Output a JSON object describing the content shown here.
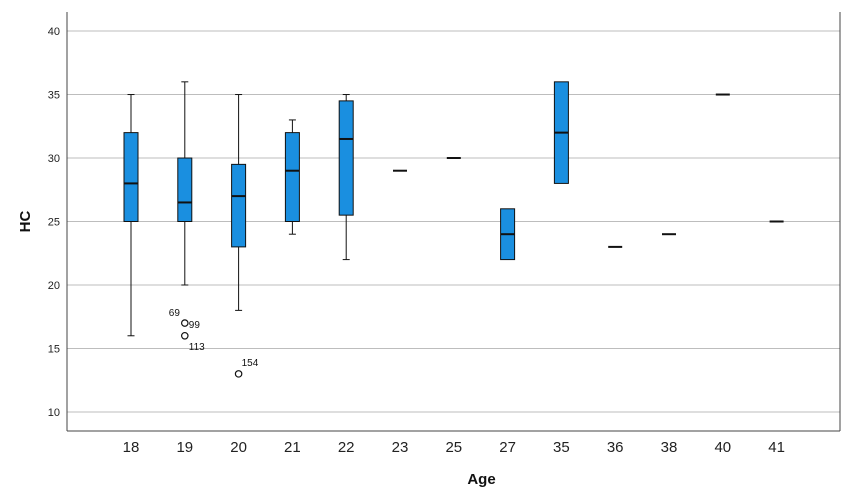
{
  "chart_data": {
    "type": "boxplot",
    "xlabel": "Age",
    "ylabel": "HC",
    "ylim": [
      8.5,
      41.5
    ],
    "yticks": [
      10,
      15,
      20,
      25,
      30,
      35,
      40
    ],
    "grid": "horizontal",
    "box_color": "#1a8fe0",
    "categories": [
      "18",
      "19",
      "20",
      "21",
      "22",
      "23",
      "25",
      "27",
      "35",
      "36",
      "38",
      "40",
      "41"
    ],
    "boxes": [
      {
        "category": "18",
        "whisker_low": 16,
        "q1": 25,
        "median": 28,
        "q3": 32,
        "whisker_high": 35
      },
      {
        "category": "19",
        "whisker_low": 20,
        "q1": 25,
        "median": 26.5,
        "q3": 30,
        "whisker_high": 36
      },
      {
        "category": "20",
        "whisker_low": 18,
        "q1": 23,
        "median": 27,
        "q3": 29.5,
        "whisker_high": 35
      },
      {
        "category": "21",
        "whisker_low": 24,
        "q1": 25,
        "median": 29,
        "q3": 32,
        "whisker_high": 33
      },
      {
        "category": "22",
        "whisker_low": 22,
        "q1": 25.5,
        "median": 31.5,
        "q3": 34.5,
        "whisker_high": 35
      },
      {
        "category": "23",
        "median": 29
      },
      {
        "category": "25",
        "median": 30
      },
      {
        "category": "27",
        "q1": 22,
        "median": 24,
        "q3": 26
      },
      {
        "category": "35",
        "q1": 28,
        "median": 32,
        "q3": 36
      },
      {
        "category": "36",
        "median": 23
      },
      {
        "category": "38",
        "median": 24
      },
      {
        "category": "40",
        "median": 35
      },
      {
        "category": "41",
        "median": 25
      }
    ],
    "outliers": [
      {
        "category": "19",
        "value": 17,
        "labels": [
          "69",
          "99"
        ]
      },
      {
        "category": "19",
        "value": 16,
        "labels": [
          "113"
        ]
      },
      {
        "category": "20",
        "value": 13,
        "labels": [
          "154"
        ]
      }
    ]
  }
}
